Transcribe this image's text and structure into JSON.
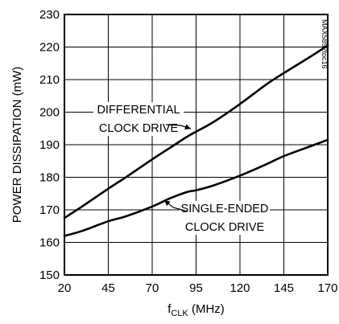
{
  "chart_data": {
    "type": "line",
    "title": "",
    "xlabel_main": "f",
    "xlabel_sub": "CLK",
    "xlabel_unit": " (MHz)",
    "ylabel": "POWER DISSIPATION (mW)",
    "xlim": [
      20,
      170
    ],
    "ylim": [
      150,
      230
    ],
    "x_ticks": [
      "20",
      "45",
      "70",
      "95",
      "120",
      "145",
      "170"
    ],
    "y_ticks": [
      "150",
      "160",
      "170",
      "180",
      "190",
      "200",
      "210",
      "220",
      "230"
    ],
    "grid": true,
    "line_color": "#000000",
    "series": [
      {
        "name": "DIFFERENTIAL CLOCK DRIVE",
        "x": [
          20,
          30,
          45,
          55,
          70,
          80,
          90,
          95,
          105,
          120,
          135,
          145,
          160,
          170
        ],
        "y": [
          167.5,
          171,
          176.5,
          180,
          185.5,
          189,
          192.5,
          194,
          197,
          202.5,
          208.5,
          212,
          217,
          220.5
        ]
      },
      {
        "name": "SINGLE-ENDED CLOCK DRIVE",
        "x": [
          20,
          30,
          45,
          55,
          70,
          80,
          90,
          95,
          105,
          120,
          135,
          145,
          160,
          170
        ],
        "y": [
          162,
          163.5,
          166.5,
          168,
          171,
          173.5,
          175.5,
          176,
          177.5,
          180.5,
          184,
          186.5,
          189.5,
          191.5
        ]
      }
    ],
    "annotations": [
      {
        "lines": [
          "DIFFERENTIAL",
          "CLOCK DRIVE"
        ]
      },
      {
        "lines": [
          "SINGLE-ENDED",
          "CLOCK DRIVE"
        ]
      }
    ],
    "watermark": "MAX5852toc16"
  }
}
